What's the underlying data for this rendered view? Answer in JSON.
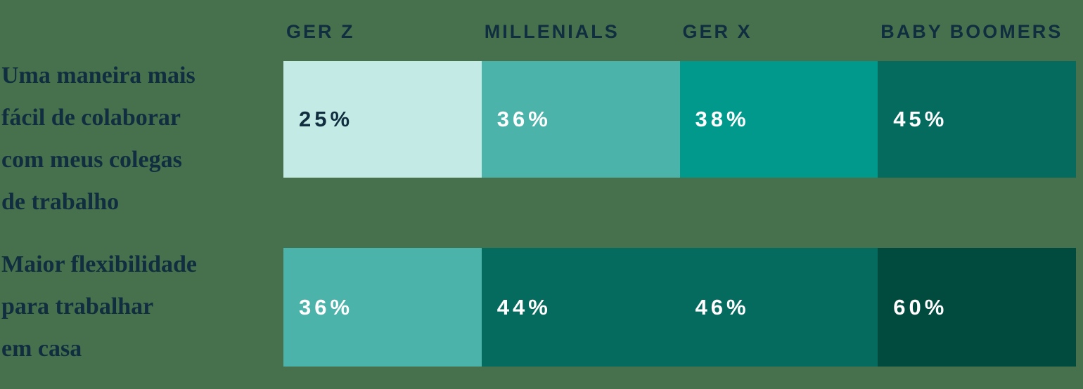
{
  "colors": {
    "background": "#47714D",
    "navy": "#102E3F",
    "white": "#FFFFFF",
    "mint": "#C3EAE5",
    "teal_light": "#4BB3AA",
    "teal": "#00998C",
    "teal_dark": "#056B5F",
    "teal_darkest": "#014A3E"
  },
  "header": {
    "columns": [
      "GER Z",
      "MILLENIALS",
      "GER X",
      "BABY BOOMERS"
    ]
  },
  "rows": [
    {
      "label_lines": [
        "Uma maneira mais",
        "fácil de colaborar",
        "com meus colegas",
        "de trabalho"
      ],
      "cells": [
        {
          "value": "25%",
          "bg": "#C3EAE5",
          "fg": "#102E3F"
        },
        {
          "value": "36%",
          "bg": "#4BB3AA",
          "fg": "#FFFFFF"
        },
        {
          "value": "38%",
          "bg": "#00998C",
          "fg": "#FFFFFF"
        },
        {
          "value": "45%",
          "bg": "#056B5F",
          "fg": "#FFFFFF"
        }
      ]
    },
    {
      "label_lines": [
        "Maior flexibilidade",
        "para trabalhar",
        "em casa"
      ],
      "cells": [
        {
          "value": "36%",
          "bg": "#4BB3AA",
          "fg": "#FFFFFF"
        },
        {
          "value": "44%",
          "bg": "#056B5F",
          "fg": "#FFFFFF"
        },
        {
          "value": "46%",
          "bg": "#056B5F",
          "fg": "#FFFFFF"
        },
        {
          "value": "60%",
          "bg": "#014A3E",
          "fg": "#FFFFFF"
        }
      ]
    }
  ],
  "chart_data": {
    "type": "heatmap",
    "title": "",
    "unit": "%",
    "categories": [
      "GER Z",
      "MILLENIALS",
      "GER X",
      "BABY BOOMERS"
    ],
    "series": [
      {
        "name": "Uma maneira mais fácil de colaborar com meus colegas de trabalho",
        "values": [
          25,
          36,
          38,
          45
        ]
      },
      {
        "name": "Maior flexibilidade para trabalhar em casa",
        "values": [
          36,
          44,
          46,
          60
        ]
      }
    ],
    "layout": {
      "columns_equal_width": true,
      "value_encoded_by": "cell color intensity",
      "legend": "none",
      "grid": "off",
      "column_header_position": "top",
      "row_label_position": "left"
    }
  }
}
